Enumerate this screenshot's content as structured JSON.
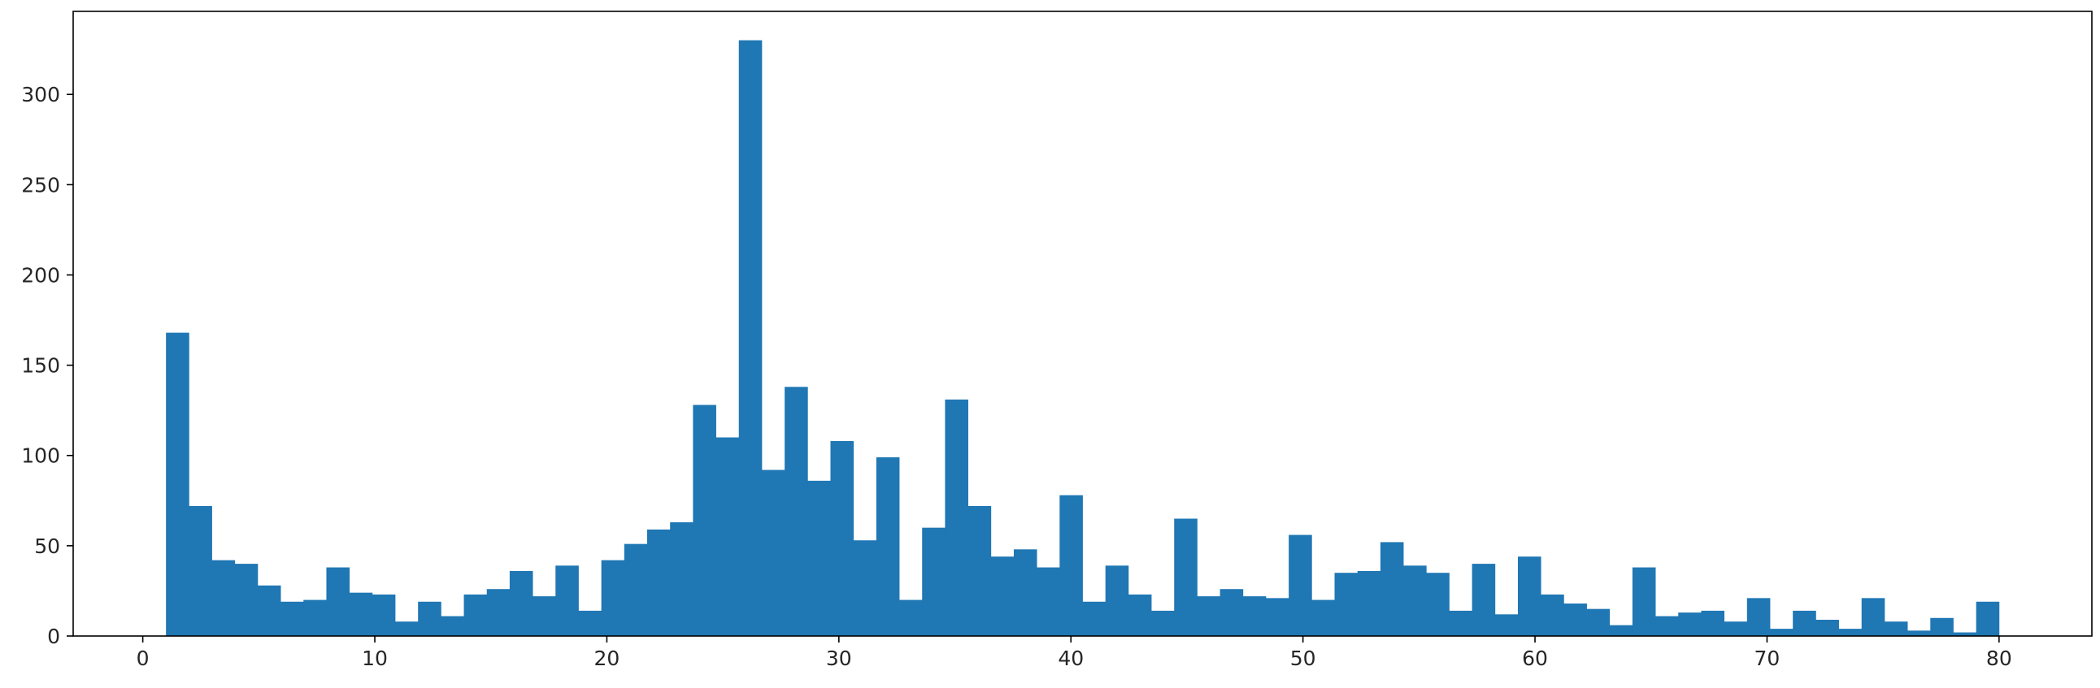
{
  "chart_data": {
    "type": "bar",
    "subtype": "histogram",
    "bin_width": 0.9875,
    "bins_start": [
      1.0,
      1.9875,
      2.975,
      3.9625,
      4.95,
      5.9375,
      6.925,
      7.9125,
      8.9,
      9.8875,
      10.875,
      11.8625,
      12.85,
      13.8375,
      14.825,
      15.8125,
      16.8,
      17.7875,
      18.775,
      19.7625,
      20.75,
      21.7375,
      22.725,
      23.7125,
      24.7,
      25.6875,
      26.675,
      27.6625,
      28.65,
      29.6375,
      30.625,
      31.6125,
      32.6,
      33.5875,
      34.575,
      35.5625,
      36.55,
      37.5375,
      38.525,
      39.5125,
      40.5,
      41.4875,
      42.475,
      43.4625,
      44.45,
      45.4375,
      46.425,
      47.4125,
      48.4,
      49.3875,
      50.375,
      51.3625,
      52.35,
      53.3375,
      54.325,
      55.3125,
      56.3,
      57.2875,
      58.275,
      59.2625,
      60.25,
      61.2375,
      62.225,
      63.2125,
      64.2,
      65.1875,
      66.175,
      67.1625,
      68.15,
      69.1375,
      70.125,
      71.1125,
      72.1,
      73.0875,
      74.075,
      75.0625,
      76.05,
      77.0375,
      78.025,
      79.0125
    ],
    "values": [
      168,
      72,
      42,
      40,
      28,
      19,
      20,
      38,
      24,
      23,
      8,
      19,
      11,
      23,
      26,
      36,
      22,
      39,
      14,
      42,
      51,
      59,
      63,
      128,
      110,
      330,
      92,
      138,
      86,
      108,
      53,
      99,
      20,
      60,
      131,
      72,
      44,
      48,
      38,
      78,
      19,
      39,
      23,
      14,
      65,
      22,
      26,
      22,
      21,
      56,
      20,
      35,
      36,
      52,
      39,
      35,
      14,
      40,
      12,
      44,
      23,
      18,
      15,
      6,
      38,
      11,
      13,
      14,
      8,
      21,
      4,
      14,
      9,
      4,
      21,
      8,
      3,
      10,
      2,
      19
    ],
    "xlim": [
      -3.0,
      84.0
    ],
    "ylim": [
      0,
      346
    ],
    "x_ticks": [
      0,
      10,
      20,
      30,
      40,
      50,
      60,
      70,
      80
    ],
    "y_ticks": [
      0,
      50,
      100,
      150,
      200,
      250,
      300
    ],
    "x_tick_labels": [
      "0",
      "10",
      "20",
      "30",
      "40",
      "50",
      "60",
      "70",
      "80"
    ],
    "y_tick_labels": [
      "0",
      "50",
      "100",
      "150",
      "200",
      "250",
      "300"
    ],
    "bar_color": "#1f77b4",
    "grid": false,
    "title": "",
    "xlabel": "",
    "ylabel": ""
  }
}
